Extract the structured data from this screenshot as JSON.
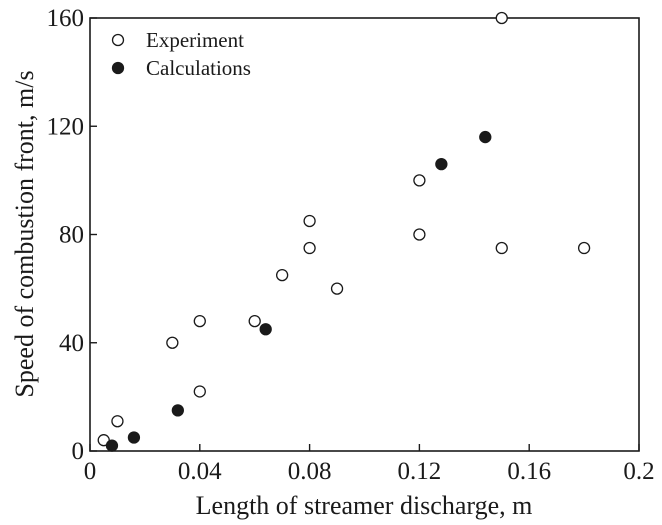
{
  "chart_data": {
    "type": "scatter",
    "xlabel": "Length of streamer discharge, m",
    "ylabel": "Speed of combustion front, m/s",
    "xlim": [
      0,
      0.2
    ],
    "ylim": [
      0,
      160
    ],
    "xticks": [
      0,
      0.04,
      0.08,
      0.12,
      0.16,
      0.2
    ],
    "xtick_labels": [
      "0",
      "0.04",
      "0.08",
      "0.12",
      "0.16",
      "0.2"
    ],
    "yticks": [
      0,
      40,
      80,
      120,
      160
    ],
    "ytick_labels": [
      "0",
      "40",
      "80",
      "120",
      "160"
    ],
    "grid": false,
    "legend_position": "top-left",
    "series": [
      {
        "name": "Experiment",
        "marker": "open-circle",
        "color": "#1a1a1a",
        "points": [
          [
            0.005,
            4
          ],
          [
            0.01,
            11
          ],
          [
            0.03,
            40
          ],
          [
            0.04,
            48
          ],
          [
            0.04,
            22
          ],
          [
            0.06,
            48
          ],
          [
            0.07,
            65
          ],
          [
            0.08,
            75
          ],
          [
            0.08,
            85
          ],
          [
            0.09,
            60
          ],
          [
            0.12,
            80
          ],
          [
            0.12,
            100
          ],
          [
            0.15,
            160
          ],
          [
            0.15,
            75
          ],
          [
            0.18,
            75
          ]
        ]
      },
      {
        "name": "Calculations",
        "marker": "filled-circle",
        "color": "#1a1a1a",
        "points": [
          [
            0.008,
            2
          ],
          [
            0.016,
            5
          ],
          [
            0.032,
            15
          ],
          [
            0.064,
            45
          ],
          [
            0.128,
            106
          ],
          [
            0.144,
            116
          ]
        ]
      }
    ]
  }
}
